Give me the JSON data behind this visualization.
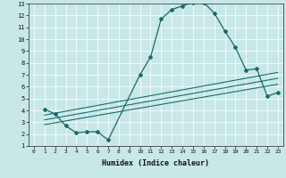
{
  "xlabel": "Humidex (Indice chaleur)",
  "ylabel": "",
  "bg_color": "#c8e8e8",
  "line_color": "#1a6b6b",
  "xlim": [
    -0.5,
    23.5
  ],
  "ylim": [
    1,
    13
  ],
  "xticks": [
    0,
    1,
    2,
    3,
    4,
    5,
    6,
    7,
    8,
    9,
    10,
    11,
    12,
    13,
    14,
    15,
    16,
    17,
    18,
    19,
    20,
    21,
    22,
    23
  ],
  "yticks": [
    1,
    2,
    3,
    4,
    5,
    6,
    7,
    8,
    9,
    10,
    11,
    12,
    13
  ],
  "curve1_x": [
    1,
    2,
    3,
    4,
    5,
    6,
    7,
    10,
    11,
    12,
    13,
    14,
    15,
    16,
    17,
    18,
    19,
    20,
    21,
    22,
    23
  ],
  "curve1_y": [
    4.1,
    3.7,
    2.7,
    2.1,
    2.2,
    2.2,
    1.5,
    7.0,
    8.5,
    11.7,
    12.5,
    12.8,
    13.1,
    13.1,
    12.2,
    10.7,
    9.3,
    7.4,
    7.5,
    5.2,
    5.5
  ],
  "line2_x": [
    1,
    23
  ],
  "line2_y": [
    2.8,
    6.2
  ],
  "line3_x": [
    1,
    23
  ],
  "line3_y": [
    3.2,
    6.7
  ],
  "line4_x": [
    1,
    23
  ],
  "line4_y": [
    3.6,
    7.2
  ]
}
